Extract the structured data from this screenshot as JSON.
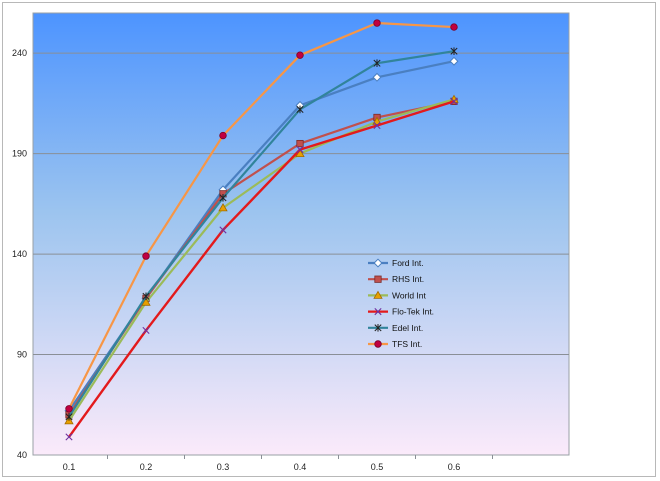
{
  "chart_data": {
    "type": "line",
    "title": "",
    "xlabel": "",
    "ylabel": "",
    "x": [
      0.1,
      0.2,
      0.3,
      0.4,
      0.5,
      0.6
    ],
    "x_tick_labels": [
      "0.1",
      "0.2",
      "0.3",
      "0.4",
      "0.5",
      "0.6"
    ],
    "y_ticks": [
      40,
      90,
      140,
      190,
      240
    ],
    "ylim": [
      40,
      260
    ],
    "grid": "horizontal",
    "legend_position": "right-center",
    "plot_background": {
      "top": "#4d94ff",
      "bottom": "#fbeafa"
    },
    "series": [
      {
        "name": "Ford Int.",
        "color": "#4a7fc1",
        "marker": "diamond",
        "values": [
          62,
          118,
          172,
          214,
          228,
          236
        ]
      },
      {
        "name": "RHS Int.",
        "color": "#c0504d",
        "marker": "square",
        "values": [
          60,
          118,
          170,
          195,
          208,
          216
        ]
      },
      {
        "name": "World Int",
        "color": "#9bbb59",
        "marker": "triangle",
        "values": [
          57,
          116,
          163,
          190,
          206,
          217
        ]
      },
      {
        "name": "Flo-Tek Int.",
        "color": "#e31a1c",
        "marker": "x",
        "values": [
          49,
          102,
          152,
          192,
          204,
          216
        ]
      },
      {
        "name": "Edel Int.",
        "color": "#31849b",
        "marker": "star",
        "values": [
          59,
          119,
          168,
          212,
          235,
          241
        ]
      },
      {
        "name": "TFS Int.",
        "color": "#f79646",
        "marker": "circle",
        "values": [
          63,
          139,
          199,
          239,
          255,
          253
        ]
      }
    ]
  }
}
